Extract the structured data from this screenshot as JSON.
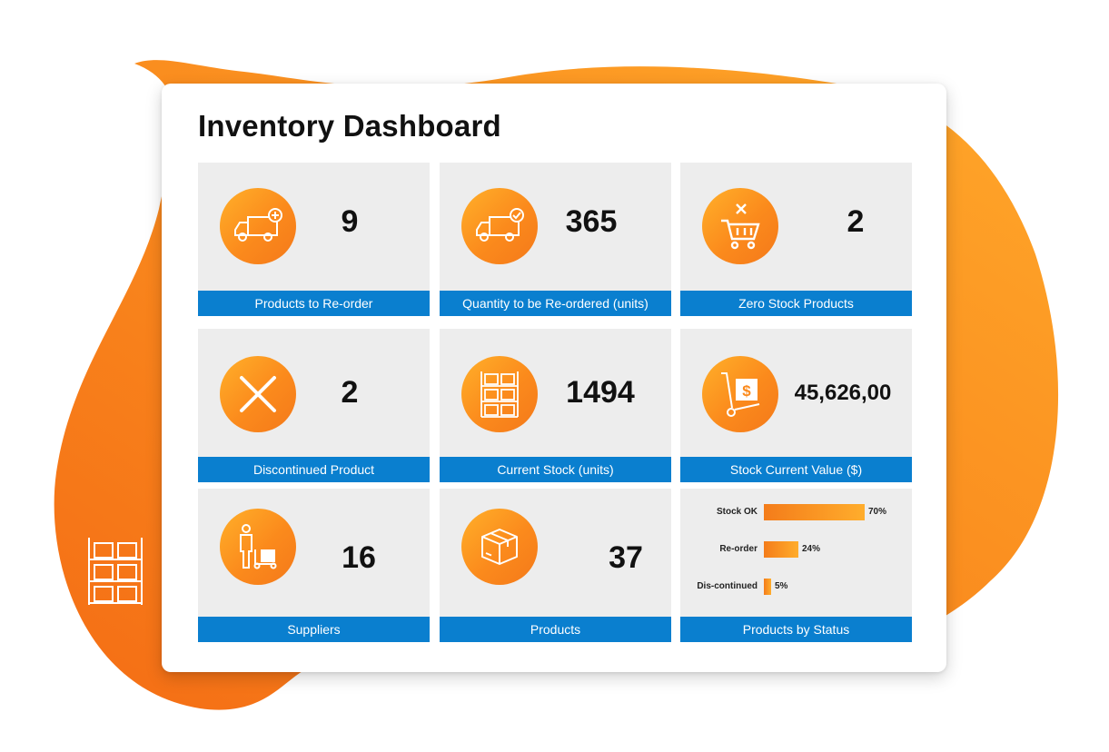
{
  "dashboard": {
    "title": "Inventory Dashboard"
  },
  "tiles": [
    {
      "caption": "Products to Re-order",
      "value": "9",
      "icon": "truck-plus-icon"
    },
    {
      "caption": "Quantity to be Re-ordered (units)",
      "value": "365",
      "icon": "truck-check-icon"
    },
    {
      "caption": "Zero Stock Products",
      "value": "2",
      "icon": "cart-x-icon"
    },
    {
      "caption": "Discontinued Product",
      "value": "2",
      "icon": "close-icon"
    },
    {
      "caption": "Current Stock (units)",
      "value": "1494",
      "icon": "warehouse-shelf-icon"
    },
    {
      "caption": "Stock Current Value ($)",
      "value": "45,626,00",
      "icon": "hand-truck-dollar-icon"
    },
    {
      "caption": "Suppliers",
      "value": "16",
      "icon": "supplier-person-icon"
    },
    {
      "caption": "Products",
      "value": "37",
      "icon": "box-icon"
    },
    {
      "caption": "Products by Status",
      "icon": "bar-chart-icon"
    }
  ],
  "chart_data": {
    "type": "bar",
    "orientation": "horizontal",
    "categories": [
      "Stock OK",
      "Re-order",
      "Dis-continued"
    ],
    "values": [
      70,
      24,
      5
    ],
    "value_labels": [
      "70%",
      "24%",
      "5%"
    ],
    "unit": "%",
    "title": "Products by Status",
    "xlim": [
      0,
      100
    ]
  },
  "colors": {
    "accent_orange": "#fb8a1c",
    "caption_blue": "#0a7fcf",
    "tile_bg": "#ededed"
  }
}
